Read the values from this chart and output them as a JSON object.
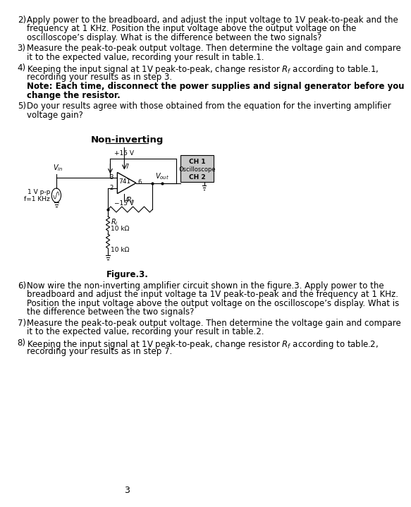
{
  "bg_color": "#ffffff",
  "text_color": "#000000",
  "page_number": "3",
  "items": [
    {
      "type": "numbered_para",
      "num": "2)",
      "lines": [
        "Apply power to the breadboard, and adjust the input voltage to 1V peak-to-peak and the",
        "frequency at 1 KHz. Position the input voltage above the output voltage on the",
        "oscilloscope’s display. What is the difference between the two signals?"
      ]
    },
    {
      "type": "numbered_para",
      "num": "3)",
      "lines": [
        "Measure the peak-to-peak output voltage. Then determine the voltage gain and compare",
        "it to the expected value, recording your result in table.1."
      ]
    },
    {
      "type": "numbered_para_with_bold",
      "num": "4)",
      "lines": [
        "Keeping the input signal at 1V peak-to-peak, change resistor Rf according to table.1,",
        "recording your results as in step 3."
      ],
      "bold_lines": [
        "Note: Each time, disconnect the power supplies and signal generator before you",
        "change the resistor."
      ]
    },
    {
      "type": "numbered_para",
      "num": "5)",
      "lines": [
        "Do your results agree with those obtained from the equation for the inverting amplifier",
        "voltage gain?"
      ]
    },
    {
      "type": "section_heading",
      "text": "Non-inverting",
      "underline": true
    },
    {
      "type": "circuit_figure",
      "caption": "Figure.3."
    },
    {
      "type": "numbered_para",
      "num": "6)",
      "lines": [
        "Now wire the non-inverting amplifier circuit shown in the figure.3. Apply power to the",
        "breadboard and adjust the input voltage ta 1V peak-to-peak and the frequency at 1 KHz.",
        "Position the input voltage above the output voltage on the oscilloscope’s display. What is",
        "the difference between the two signals?"
      ]
    },
    {
      "type": "numbered_para",
      "num": "7)",
      "lines": [
        "Measure the peak-to-peak output voltage. Then determine the voltage gain and compare",
        "it to the expected value, recording your result in table.2."
      ]
    },
    {
      "type": "numbered_para_rf",
      "num": "8)",
      "lines": [
        "Keeping the input signal at 1V peak-to-peak, change resistor Rf according to table.2,",
        "recording your results as in step 7."
      ]
    }
  ]
}
